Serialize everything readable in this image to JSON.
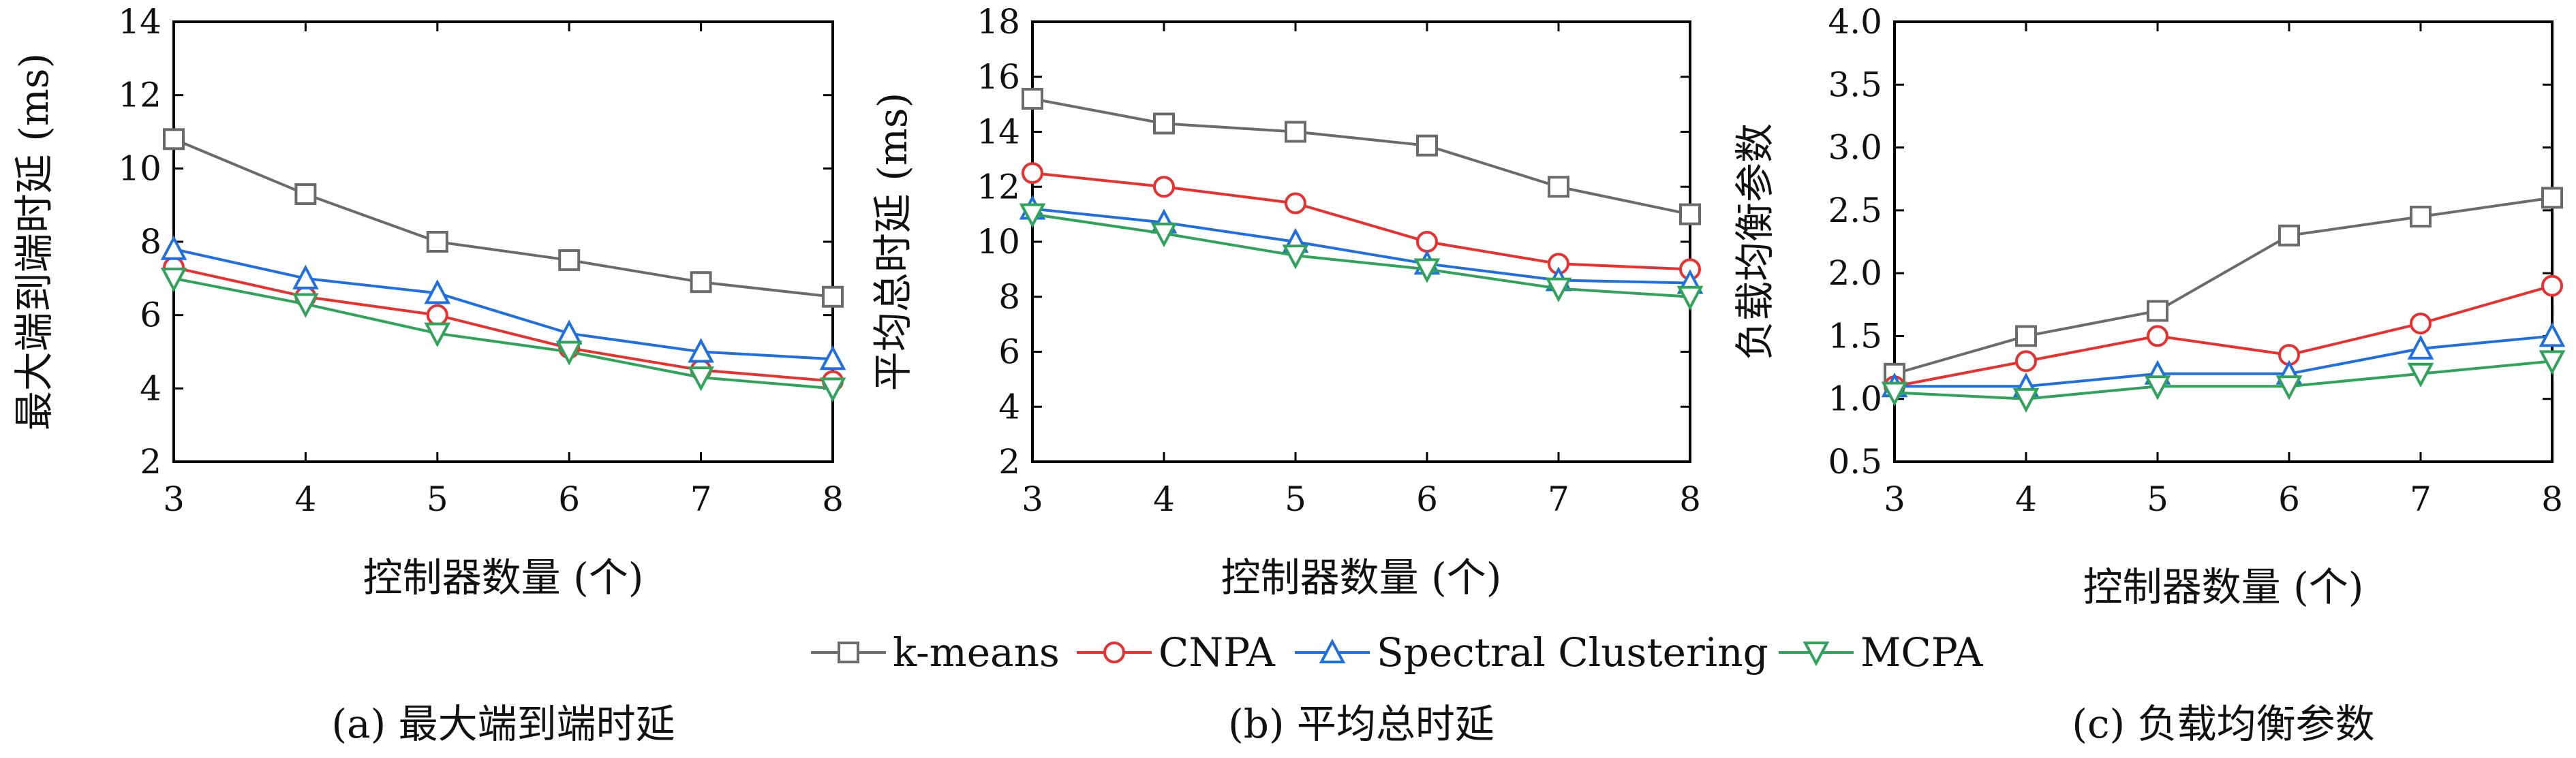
{
  "colors": {
    "k-means": "#6b6b6b",
    "CNPA": "#e8312f",
    "Spectral Clustering": "#1f6fe0",
    "MCPA": "#2fa35a"
  },
  "legend": [
    "k-means",
    "CNPA",
    "Spectral Clustering",
    "MCPA"
  ],
  "markers": {
    "k-means": "square",
    "CNPA": "circle",
    "Spectral Clustering": "triangle-up",
    "MCPA": "triangle-down"
  },
  "chart_data": [
    {
      "type": "line",
      "caption": "(a) 最大端到端时延",
      "xlabel": "控制器数量 (个)",
      "ylabel": "最大端到端时延 (ms)",
      "x": [
        3,
        4,
        5,
        6,
        7,
        8
      ],
      "xlim": [
        3,
        8
      ],
      "ylim": [
        2,
        14
      ],
      "yticks": [
        "2",
        "4",
        "6",
        "8",
        "10",
        "12",
        "14"
      ],
      "series": [
        {
          "name": "k-means",
          "values": [
            10.8,
            9.3,
            8.0,
            7.5,
            6.9,
            6.5
          ]
        },
        {
          "name": "CNPA",
          "values": [
            7.3,
            6.5,
            6.0,
            5.1,
            4.5,
            4.2
          ]
        },
        {
          "name": "Spectral Clustering",
          "values": [
            7.8,
            7.0,
            6.6,
            5.5,
            5.0,
            4.8
          ]
        },
        {
          "name": "MCPA",
          "values": [
            7.0,
            6.3,
            5.5,
            5.0,
            4.3,
            4.0
          ]
        }
      ]
    },
    {
      "type": "line",
      "caption": "(b) 平均总时延",
      "xlabel": "控制器数量 (个)",
      "ylabel": "平均总时延 (ms)",
      "x": [
        3,
        4,
        5,
        6,
        7,
        8
      ],
      "xlim": [
        3,
        8
      ],
      "ylim": [
        2,
        18
      ],
      "yticks": [
        "2",
        "4",
        "6",
        "8",
        "10",
        "12",
        "14",
        "16",
        "18"
      ],
      "series": [
        {
          "name": "k-means",
          "values": [
            15.2,
            14.3,
            14.0,
            13.5,
            12.0,
            11.0
          ]
        },
        {
          "name": "CNPA",
          "values": [
            12.5,
            12.0,
            11.4,
            10.0,
            9.2,
            9.0
          ]
        },
        {
          "name": "Spectral Clustering",
          "values": [
            11.2,
            10.7,
            10.0,
            9.2,
            8.6,
            8.5
          ]
        },
        {
          "name": "MCPA",
          "values": [
            11.0,
            10.3,
            9.5,
            9.0,
            8.3,
            8.0
          ]
        }
      ]
    },
    {
      "type": "line",
      "caption": "(c) 负载均衡参数",
      "xlabel": "控制器数量 (个)",
      "ylabel": "负载均衡参数",
      "x": [
        3,
        4,
        5,
        6,
        7,
        8
      ],
      "xlim": [
        3,
        8
      ],
      "ylim": [
        0.5,
        4.0
      ],
      "yticks": [
        "0.5",
        "1.0",
        "1.5",
        "2.0",
        "2.5",
        "3.0",
        "3.5",
        "4.0"
      ],
      "series": [
        {
          "name": "k-means",
          "values": [
            1.2,
            1.5,
            1.7,
            2.3,
            2.45,
            2.6
          ]
        },
        {
          "name": "CNPA",
          "values": [
            1.1,
            1.3,
            1.5,
            1.35,
            1.6,
            1.9
          ]
        },
        {
          "name": "Spectral Clustering",
          "values": [
            1.1,
            1.1,
            1.2,
            1.2,
            1.4,
            1.5
          ]
        },
        {
          "name": "MCPA",
          "values": [
            1.05,
            1.0,
            1.1,
            1.1,
            1.2,
            1.3
          ]
        }
      ]
    }
  ]
}
